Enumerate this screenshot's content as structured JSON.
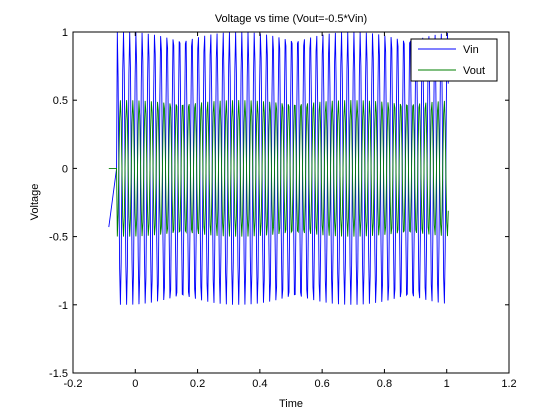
{
  "chart_data": {
    "type": "line",
    "title": "Voltage vs time (Vout=-0.5*Vin)",
    "xlabel": "Time",
    "ylabel": "Voltage",
    "xlim": [
      -0.2,
      1.2
    ],
    "ylim": [
      -1.5,
      1
    ],
    "xticks": [
      -0.2,
      0,
      0.2,
      0.4,
      0.6,
      0.8,
      1,
      1.2
    ],
    "xtick_labels": [
      "-0.2",
      "0",
      "0.2",
      "0.4",
      "0.6",
      "0.8",
      "1",
      "1.2"
    ],
    "yticks": [
      -1.5,
      -1,
      -0.5,
      0,
      0.5,
      1
    ],
    "ytick_labels": [
      "-1.5",
      "-1",
      "-0.5",
      "0",
      "0.5",
      "1"
    ],
    "grid": false,
    "legend_position": "top-right",
    "x_start": -0.085,
    "x_end": 1.005,
    "flat_until": -0.06,
    "samples": 440,
    "series": [
      {
        "name": "Vin",
        "color": "#0000ff",
        "amplitude": 1.0,
        "frequency_hz": 50,
        "initial_value": -0.43
      },
      {
        "name": "Vout",
        "color": "#007f00",
        "amplitude": 0.5,
        "frequency_hz": 50,
        "gain": -0.5
      }
    ]
  }
}
